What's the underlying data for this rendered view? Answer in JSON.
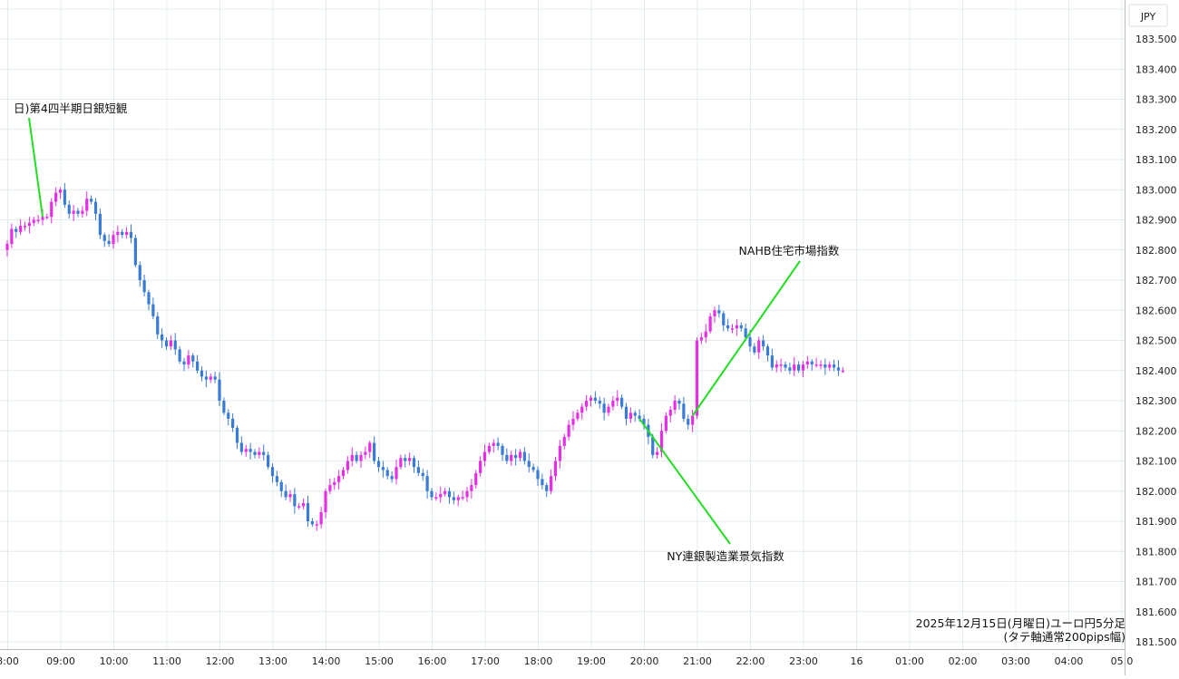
{
  "chart_data": {
    "type": "candlestick",
    "currency_badge": "JPY",
    "ylim": [
      181.5,
      183.65
    ],
    "y_ticks": [
      "183.500",
      "183.400",
      "183.300",
      "183.200",
      "183.100",
      "183.000",
      "182.900",
      "182.800",
      "182.700",
      "182.600",
      "182.500",
      "182.400",
      "182.300",
      "182.200",
      "182.100",
      "182.000",
      "181.900",
      "181.800",
      "181.700",
      "181.600",
      "181.500"
    ],
    "x_ticks": [
      "8:00",
      "09:00",
      "10:00",
      "11:00",
      "12:00",
      "13:00",
      "14:00",
      "15:00",
      "16:00",
      "17:00",
      "18:00",
      "19:00",
      "20:00",
      "21:00",
      "22:00",
      "23:00",
      "16",
      "01:00",
      "02:00",
      "03:00",
      "04:00",
      "05:0"
    ],
    "grid": true,
    "colors": {
      "up": "#e62ee6",
      "down": "#3a7bd5",
      "annotation_line": "#22dd22",
      "grid": "#e3ecec"
    },
    "annotations": [
      {
        "text": "日)第4四半期日銀短観",
        "slot": 8
      },
      {
        "text": "NAHB住宅市場指数",
        "slot": 155
      },
      {
        "text": "NY連銀製造業景気指数",
        "slot": 143
      }
    ],
    "footnote_line1": "2025年12月15日(月曜日)ユーロ円5分足",
    "footnote_line2": "(タテ軸通常200pips幅)",
    "closes": [
      182.82,
      182.87,
      182.86,
      182.88,
      182.88,
      182.89,
      182.9,
      182.9,
      182.91,
      182.91,
      182.96,
      182.99,
      183.0,
      182.95,
      182.92,
      182.93,
      182.92,
      182.93,
      182.97,
      182.96,
      182.92,
      182.85,
      182.83,
      182.82,
      182.85,
      182.86,
      182.85,
      182.86,
      182.84,
      182.75,
      182.7,
      182.66,
      182.62,
      182.58,
      182.52,
      182.5,
      182.48,
      182.5,
      182.47,
      182.43,
      182.42,
      182.45,
      182.43,
      182.4,
      182.38,
      182.37,
      182.38,
      182.37,
      182.3,
      182.26,
      182.24,
      182.21,
      182.16,
      182.13,
      182.14,
      182.13,
      182.12,
      182.13,
      182.12,
      182.08,
      182.05,
      182.03,
      182.0,
      181.98,
      181.99,
      181.95,
      181.95,
      181.96,
      181.9,
      181.89,
      181.89,
      181.93,
      182.0,
      182.02,
      182.03,
      182.05,
      182.07,
      182.1,
      182.12,
      182.1,
      182.12,
      182.13,
      182.16,
      182.1,
      182.08,
      182.07,
      182.05,
      182.04,
      182.08,
      182.11,
      182.1,
      182.11,
      182.08,
      182.06,
      182.05,
      182.0,
      181.98,
      181.98,
      181.99,
      182.0,
      181.98,
      181.97,
      181.98,
      181.98,
      182.0,
      182.02,
      182.06,
      182.1,
      182.13,
      182.15,
      182.16,
      182.15,
      182.12,
      182.1,
      182.12,
      182.11,
      182.13,
      182.1,
      182.08,
      182.07,
      182.04,
      182.02,
      182.0,
      182.05,
      182.1,
      182.15,
      182.18,
      182.22,
      182.24,
      182.26,
      182.28,
      182.3,
      182.31,
      182.3,
      182.29,
      182.26,
      182.28,
      182.3,
      182.31,
      182.28,
      182.24,
      182.26,
      182.25,
      182.24,
      182.22,
      182.18,
      182.12,
      182.13,
      182.2,
      182.25,
      182.27,
      182.3,
      182.29,
      182.24,
      182.22,
      182.25,
      182.5,
      182.51,
      182.53,
      182.58,
      182.6,
      182.59,
      182.55,
      182.54,
      182.54,
      182.55,
      182.54,
      182.51,
      182.48,
      182.46,
      182.5,
      182.48,
      182.45,
      182.41,
      182.42,
      182.42,
      182.41,
      182.4,
      182.42,
      182.4,
      182.42,
      182.43,
      182.42,
      182.42,
      182.42,
      182.41,
      182.42,
      182.41,
      182.4,
      182.4
    ]
  }
}
